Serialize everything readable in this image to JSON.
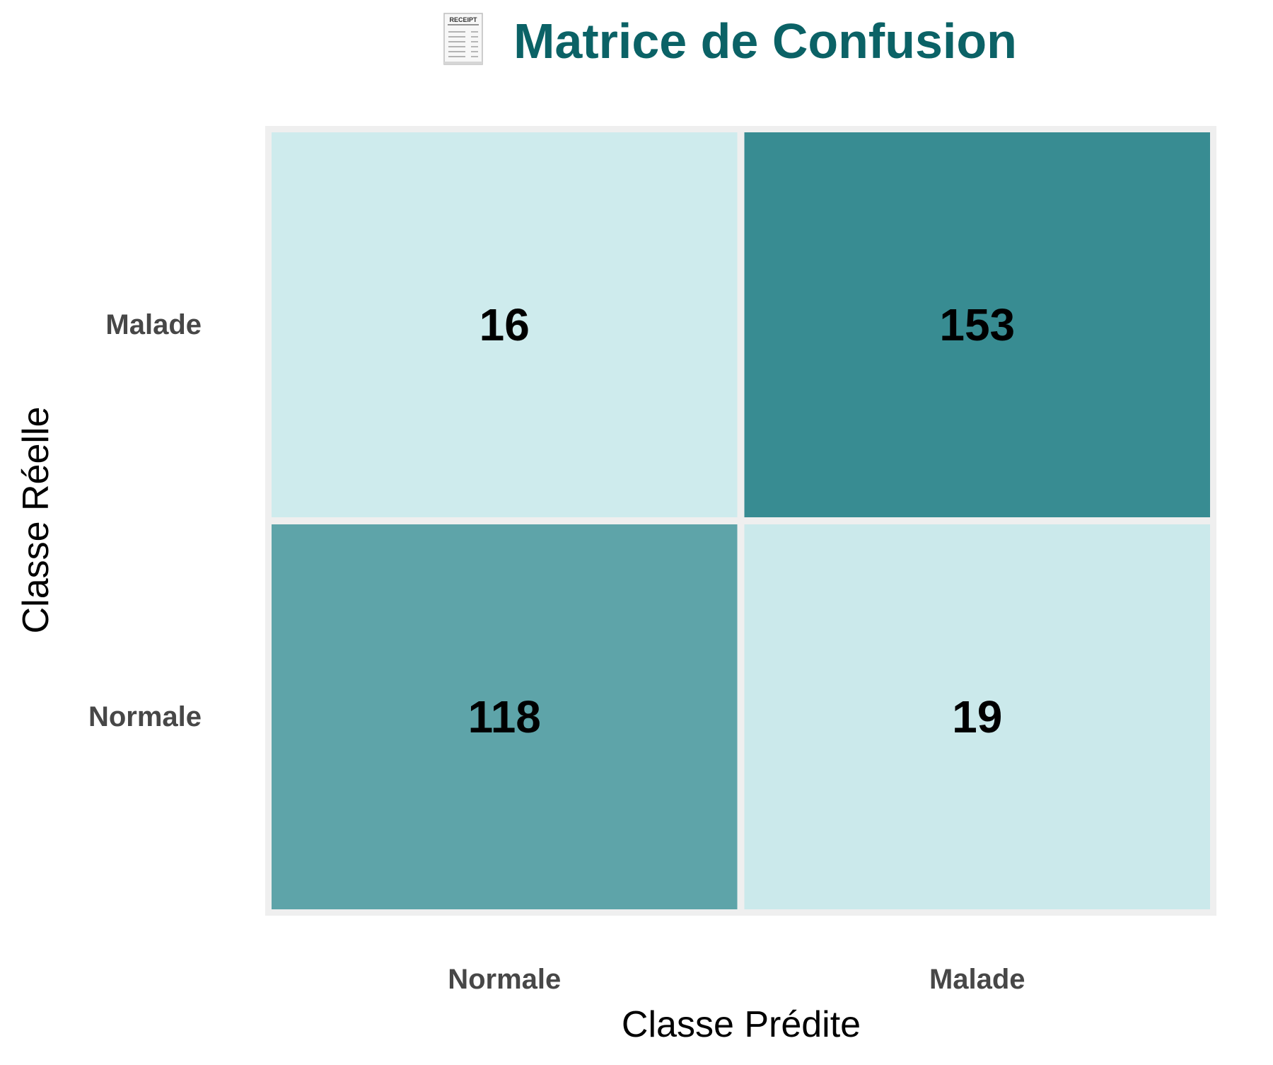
{
  "chart_data": {
    "type": "heatmap",
    "title": "Matrice de Confusion",
    "title_icon": "receipt-icon",
    "title_icon_text": "RECEIPT",
    "xlabel": "Classe Prédite",
    "ylabel": "Classe Réelle",
    "x_categories": [
      "Normale",
      "Malade"
    ],
    "y_categories": [
      "Normale",
      "Malade"
    ],
    "y_order": "bottom-to-top",
    "values": [
      [
        118,
        19
      ],
      [
        16,
        153
      ]
    ],
    "value_range": [
      0,
      153
    ],
    "colors": {
      "title": "#0b6266",
      "low": "#e0f6f8",
      "high": "#388c92",
      "frame": "#efefef",
      "tick_label": "#474747",
      "axis_label": "#000000",
      "cell_text": "#000000"
    },
    "grid": false,
    "legend": "none"
  }
}
